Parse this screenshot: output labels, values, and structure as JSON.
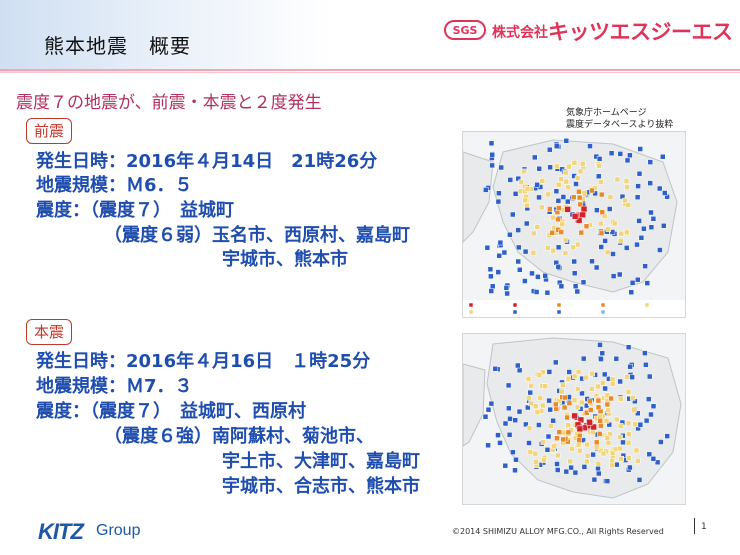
{
  "header": {
    "title": "熊本地震　概要",
    "logo_badge": "SGS",
    "company_prefix": "株式会社",
    "company_name": "キッツエスジーエス"
  },
  "subtitle": "震度７の地震が、前震・本震と２度発生",
  "foreshock": {
    "tag": "前震",
    "date_line": "発生日時：2016年４月14日　21時26分",
    "magnitude_line": "地震規模：Ｍ6．５",
    "intensity7_line": "震度：（震度７）　益城町",
    "intensity6_line1": "（震度６弱）玉名市、西原村、嘉島町",
    "intensity6_line2": "宇城市、熊本市"
  },
  "mainshock": {
    "tag": "本震",
    "date_line": "発生日時：2016年４月16日　１時25分",
    "magnitude_line": "地震規模：Ｍ7．３",
    "intensity7_line": "震度：（震度７）　益城町、西原村",
    "intensity6_line1": "（震度６強）南阿蘇村、菊池市、",
    "intensity6_line2": "宇土市、大津町、嘉島町",
    "intensity6_line3": "宇城市、合志市、熊本市"
  },
  "source_note": {
    "line1": "気象庁ホームページ",
    "line2": "震度データベースより抜粋"
  },
  "footer": {
    "logo": "KITZ",
    "group": "Group",
    "copyright": "©2014  SHIMIZU  ALLOY  MFG.CO., All Rights Reserved",
    "page": "1"
  },
  "colors": {
    "accent_pink": "#e0335a",
    "info_blue": "#1f4eaf",
    "tag_red": "#c0392b",
    "map_blue": "#2f5fc8",
    "map_yellow": "#f2d57a",
    "map_orange": "#e98a2a",
    "map_red": "#d0242a"
  }
}
